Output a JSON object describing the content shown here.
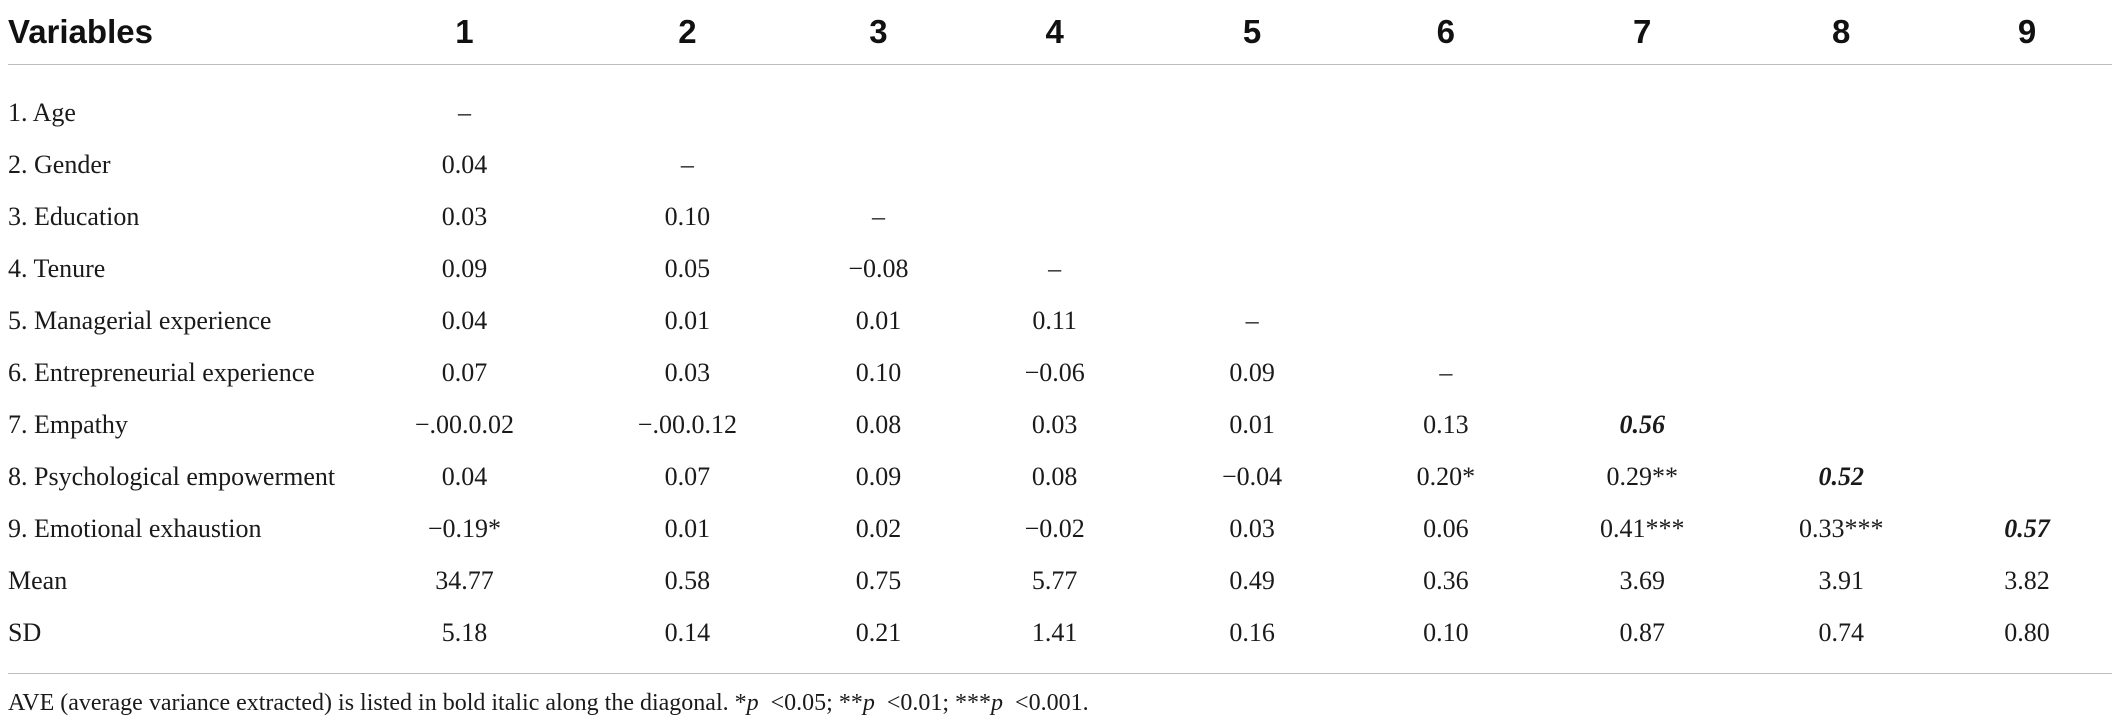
{
  "table": {
    "header_label": "Variables",
    "column_headers": [
      "1",
      "2",
      "3",
      "4",
      "5",
      "6",
      "7",
      "8",
      "9"
    ],
    "rows": [
      {
        "label": "1. Age",
        "cells": [
          "–",
          "",
          "",
          "",
          "",
          "",
          "",
          "",
          ""
        ]
      },
      {
        "label": "2. Gender",
        "cells": [
          "0.04",
          "–",
          "",
          "",
          "",
          "",
          "",
          "",
          ""
        ]
      },
      {
        "label": "3. Education",
        "cells": [
          "0.03",
          "0.10",
          "–",
          "",
          "",
          "",
          "",
          "",
          ""
        ]
      },
      {
        "label": "4. Tenure",
        "cells": [
          "0.09",
          "0.05",
          "−0.08",
          "–",
          "",
          "",
          "",
          "",
          ""
        ]
      },
      {
        "label": "5. Managerial experience",
        "cells": [
          "0.04",
          "0.01",
          "0.01",
          "0.11",
          "–",
          "",
          "",
          "",
          ""
        ]
      },
      {
        "label": "6. Entrepreneurial experience",
        "cells": [
          "0.07",
          "0.03",
          "0.10",
          "−0.06",
          "0.09",
          "–",
          "",
          "",
          ""
        ]
      },
      {
        "label": "7. Empathy",
        "cells": [
          "−.00.0.02",
          "−.00.0.12",
          "0.08",
          "0.03",
          "0.01",
          "0.13",
          "0.56",
          "",
          ""
        ]
      },
      {
        "label": "8. Psychological empowerment",
        "cells": [
          "0.04",
          "0.07",
          "0.09",
          "0.08",
          "−0.04",
          "0.20*",
          "0.29**",
          "0.52",
          ""
        ]
      },
      {
        "label": "9. Emotional exhaustion",
        "cells": [
          "−0.19*",
          "0.01",
          "0.02",
          "−0.02",
          "0.03",
          "0.06",
          "0.41***",
          "0.33***",
          "0.57"
        ]
      },
      {
        "label": "Mean",
        "cells": [
          "34.77",
          "0.58",
          "0.75",
          "5.77",
          "0.49",
          "0.36",
          "3.69",
          "3.91",
          "3.82"
        ]
      },
      {
        "label": "SD",
        "cells": [
          "5.18",
          "0.14",
          "0.21",
          "1.41",
          "0.16",
          "0.10",
          "0.87",
          "0.74",
          "0.80"
        ]
      }
    ]
  },
  "footnote": {
    "text": "AVE (average variance extracted) is listed in bold italic along the diagonal.",
    "p_star1": "*",
    "p1": "p",
    "v1": "<0.05;",
    "p_star2": "**",
    "p2": "p",
    "v2": "<0.01;",
    "p_star3": "***",
    "p3": "p",
    "v3": "<0.001."
  }
}
